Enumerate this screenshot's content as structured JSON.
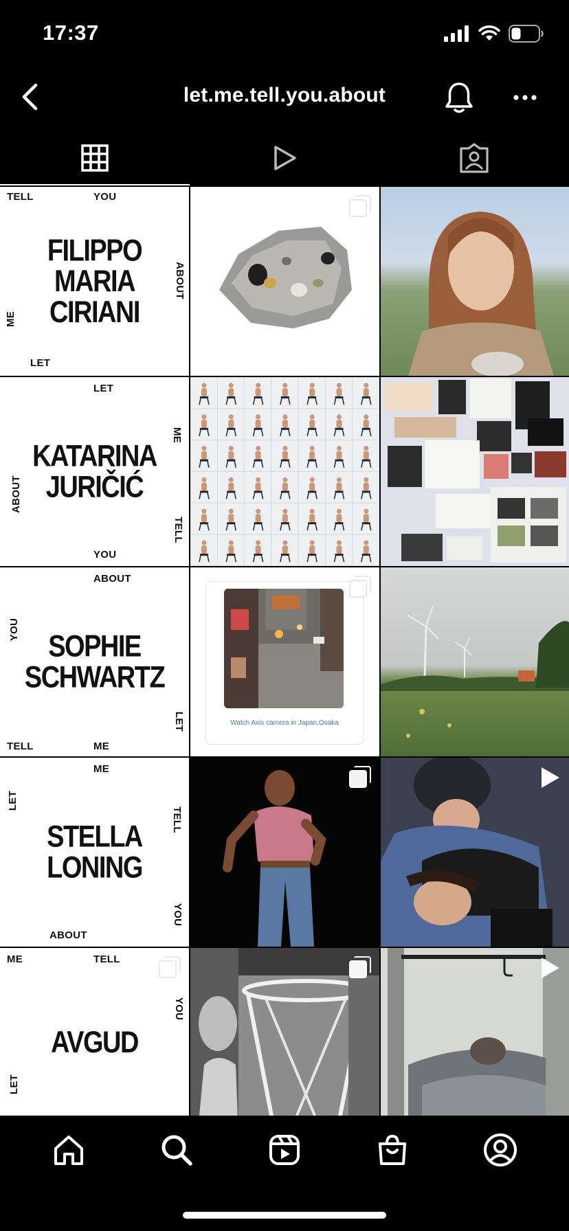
{
  "status": {
    "time": "17:37"
  },
  "header": {
    "username": "let.me.tell.you.about"
  },
  "tabs": [
    {
      "name": "grid-tab",
      "icon": "grid-icon"
    },
    {
      "name": "reels-tab",
      "icon": "play-icon"
    },
    {
      "name": "tagged-tab",
      "icon": "tagged-person-icon"
    }
  ],
  "posters": [
    {
      "name_line1": "FILIPPO",
      "name_line2": "MARIA",
      "name_line3": "CIRIANI",
      "words": {
        "tl": "TELL",
        "tm": "YOU",
        "r": "ABOUT",
        "l": "ME",
        "bl": "LET"
      }
    },
    {
      "name_line1": "KATARINA",
      "name_line2": "JURIČIĆ",
      "words": {
        "tm": "LET",
        "r1": "ME",
        "l": "ABOUT",
        "r2": "TELL",
        "bm": "YOU"
      }
    },
    {
      "name_line1": "SOPHIE",
      "name_line2": "SCHWARTZ",
      "words": {
        "tm": "ABOUT",
        "l": "YOU",
        "r": "LET",
        "bl": "TELL",
        "bm": "ME"
      }
    },
    {
      "name_line1": "STELLA",
      "name_line2": "LONING",
      "words": {
        "tm": "ME",
        "l": "LET",
        "r1": "TELL",
        "r2": "YOU",
        "bl": "ABOUT"
      }
    },
    {
      "name_line1": "AVGUD",
      "words": {
        "tl": "ME",
        "tm": "TELL",
        "r": "YOU",
        "l": "LET"
      }
    }
  ],
  "webcam_caption": "Watch Axis camera in Japan,Osaka",
  "bottom_nav": [
    {
      "icon": "home-icon"
    },
    {
      "icon": "search-icon"
    },
    {
      "icon": "reels-icon"
    },
    {
      "icon": "shop-icon"
    },
    {
      "icon": "profile-icon"
    }
  ]
}
